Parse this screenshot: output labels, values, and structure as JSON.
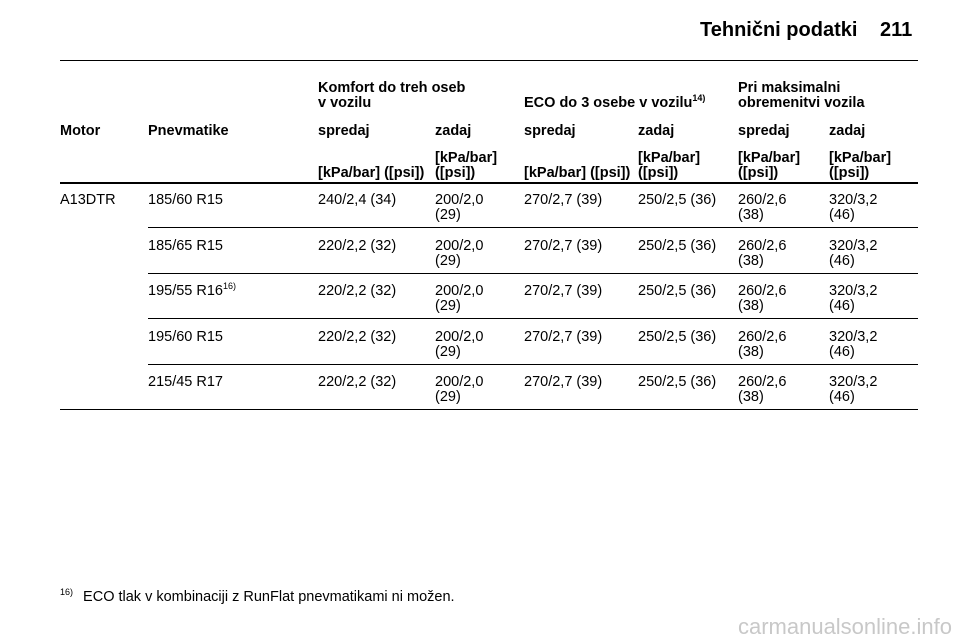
{
  "header": {
    "title": "Tehnični podatki",
    "page": "211"
  },
  "table": {
    "group_headers": [
      {
        "label": "Komfort do treh oseb v vozilu"
      },
      {
        "label": "ECO do 3 osebe v vozilu",
        "note": "14)"
      },
      {
        "label": "Pri maksimalni obremenitvi vozila"
      }
    ],
    "columns": [
      "Motor",
      "Pnevmatike",
      "spredaj",
      "zadaj",
      "spredaj",
      "zadaj",
      "spredaj",
      "zadaj"
    ],
    "units": [
      "[kPa/bar] ([psi])",
      "[kPa/bar] ([psi])",
      "[kPa/bar] ([psi])",
      "[kPa/bar] ([psi])",
      "[kPa/bar] ([psi])",
      "[kPa/bar] ([psi])"
    ],
    "rows": [
      {
        "motor": "A13DTR",
        "tire": "185/60 R15",
        "values": [
          "240/2,4 (34)",
          "200/2,0 (29)",
          "270/2,7 (39)",
          "250/2,5 (36)",
          "260/2,6 (38)",
          "320/3,2 (46)"
        ]
      },
      {
        "tire": "185/65 R15",
        "values": [
          "220/2,2 (32)",
          "200/2,0 (29)",
          "270/2,7 (39)",
          "250/2,5 (36)",
          "260/2,6 (38)",
          "320/3,2 (46)"
        ]
      },
      {
        "tire": "195/55 R16",
        "note": "16)",
        "values": [
          "220/2,2 (32)",
          "200/2,0 (29)",
          "270/2,7 (39)",
          "250/2,5 (36)",
          "260/2,6 (38)",
          "320/3,2 (46)"
        ]
      },
      {
        "tire": "195/60 R15",
        "values": [
          "220/2,2 (32)",
          "200/2,0 (29)",
          "270/2,7 (39)",
          "250/2,5 (36)",
          "260/2,6 (38)",
          "320/3,2 (46)"
        ]
      },
      {
        "tire": "215/45 R17",
        "values": [
          "220/2,2 (32)",
          "200/2,0 (29)",
          "270/2,7 (39)",
          "250/2,5 (36)",
          "260/2,6 (38)",
          "320/3,2 (46)"
        ]
      }
    ]
  },
  "footnote": {
    "marker": "16)",
    "text": "ECO tlak v kombinaciji z RunFlat pnevmatikami ni možen."
  },
  "watermark": "carmanualsonline.info"
}
